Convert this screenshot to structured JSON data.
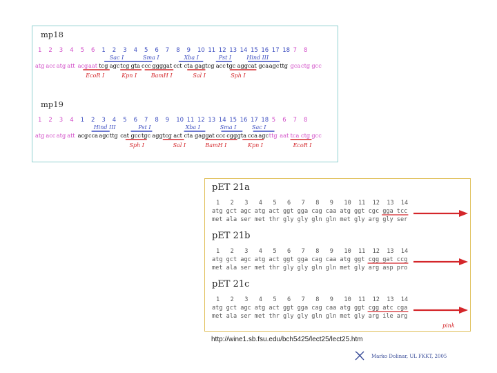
{
  "colors": {
    "magenta": "#d24ec8",
    "blue": "#3b4cc0",
    "red": "#d4262a",
    "cyan_border": "#8fd0d0",
    "gold_border": "#e0c05a",
    "black": "#111111"
  },
  "mp18": {
    "title": "mp18",
    "numbers": [
      "1",
      "2",
      "3",
      "4",
      "5",
      "6",
      "1",
      "2",
      "3",
      "4",
      "5",
      "6",
      "7",
      "8",
      "9",
      "10",
      "11",
      "12",
      "13",
      "14",
      "15",
      "16",
      "17",
      "18",
      "7",
      "8"
    ],
    "top_sites": [
      "Sac I",
      "Sma I",
      "Xba I",
      "Pst I",
      "Hind III"
    ],
    "sequence": "atg acc atg att acg aat tcg agc tcg gta ccc ggg gat cct cta gag tcg acc tgc agg cat gca agc ttg gca ctg gcc",
    "bottom_sites": [
      "EcoR I",
      "Kpn I",
      "BamH I",
      "Sal I",
      "Sph I"
    ]
  },
  "mp19": {
    "title": "mp19",
    "numbers": [
      "1",
      "2",
      "3",
      "4",
      "1",
      "2",
      "3",
      "4",
      "5",
      "6",
      "7",
      "8",
      "9",
      "10",
      "11",
      "12",
      "13",
      "14",
      "15",
      "16",
      "17",
      "18",
      "5",
      "6",
      "7",
      "8"
    ],
    "top_sites": [
      "Hind III",
      "Pst I",
      "Xba I",
      "Sma I",
      "Sac I"
    ],
    "sequence": "atg acc atg att acg cca agc ttg cat gcc tgc agg tcg act cta gag gat ccc cgg gta cca agc ttg aat tca ctg gcc",
    "bottom_sites": [
      "Sph I",
      "Sal I",
      "BamH I",
      "Kpn I",
      "EcoR I"
    ]
  },
  "pet": {
    "frames": [
      {
        "title": "pET 21a",
        "numbers": [
          "1",
          "2",
          "3",
          "4",
          "5",
          "6",
          "7",
          "8",
          "9",
          "10",
          "11",
          "12",
          "13",
          "14"
        ],
        "dna": "atg gct agc atg act ggt gga cag caa atg ggt cgc gga tcc",
        "aa": "met ala ser met thr gly gly gln gln met gly arg gly ser"
      },
      {
        "title": "pET 21b",
        "numbers": [
          "1",
          "2",
          "3",
          "4",
          "5",
          "6",
          "7",
          "8",
          "9",
          "10",
          "11",
          "12",
          "13",
          "14"
        ],
        "dna": "atg gct agc atg act ggt gga cag caa atg ggt cgg gat ccg",
        "aa": "met ala ser met thr gly gly gln gln met gly arg asp pro"
      },
      {
        "title": "pET 21c",
        "numbers": [
          "1",
          "2",
          "3",
          "4",
          "5",
          "6",
          "7",
          "8",
          "9",
          "10",
          "11",
          "12",
          "13",
          "14"
        ],
        "dna": "atg gct agc atg act ggt gga cag caa atg ggt cgg atc cga",
        "aa": "met ala ser met thr gly gly gln gln met gly arg ile arg"
      }
    ],
    "arrow_label": "pink"
  },
  "url": "http://wine1.sb.fsu.edu/bch5425/lect25/lect25.htm",
  "credit": "Marko Dolinar, UL FKKT, 2005",
  "credit_icon": "dna-helix-icon"
}
